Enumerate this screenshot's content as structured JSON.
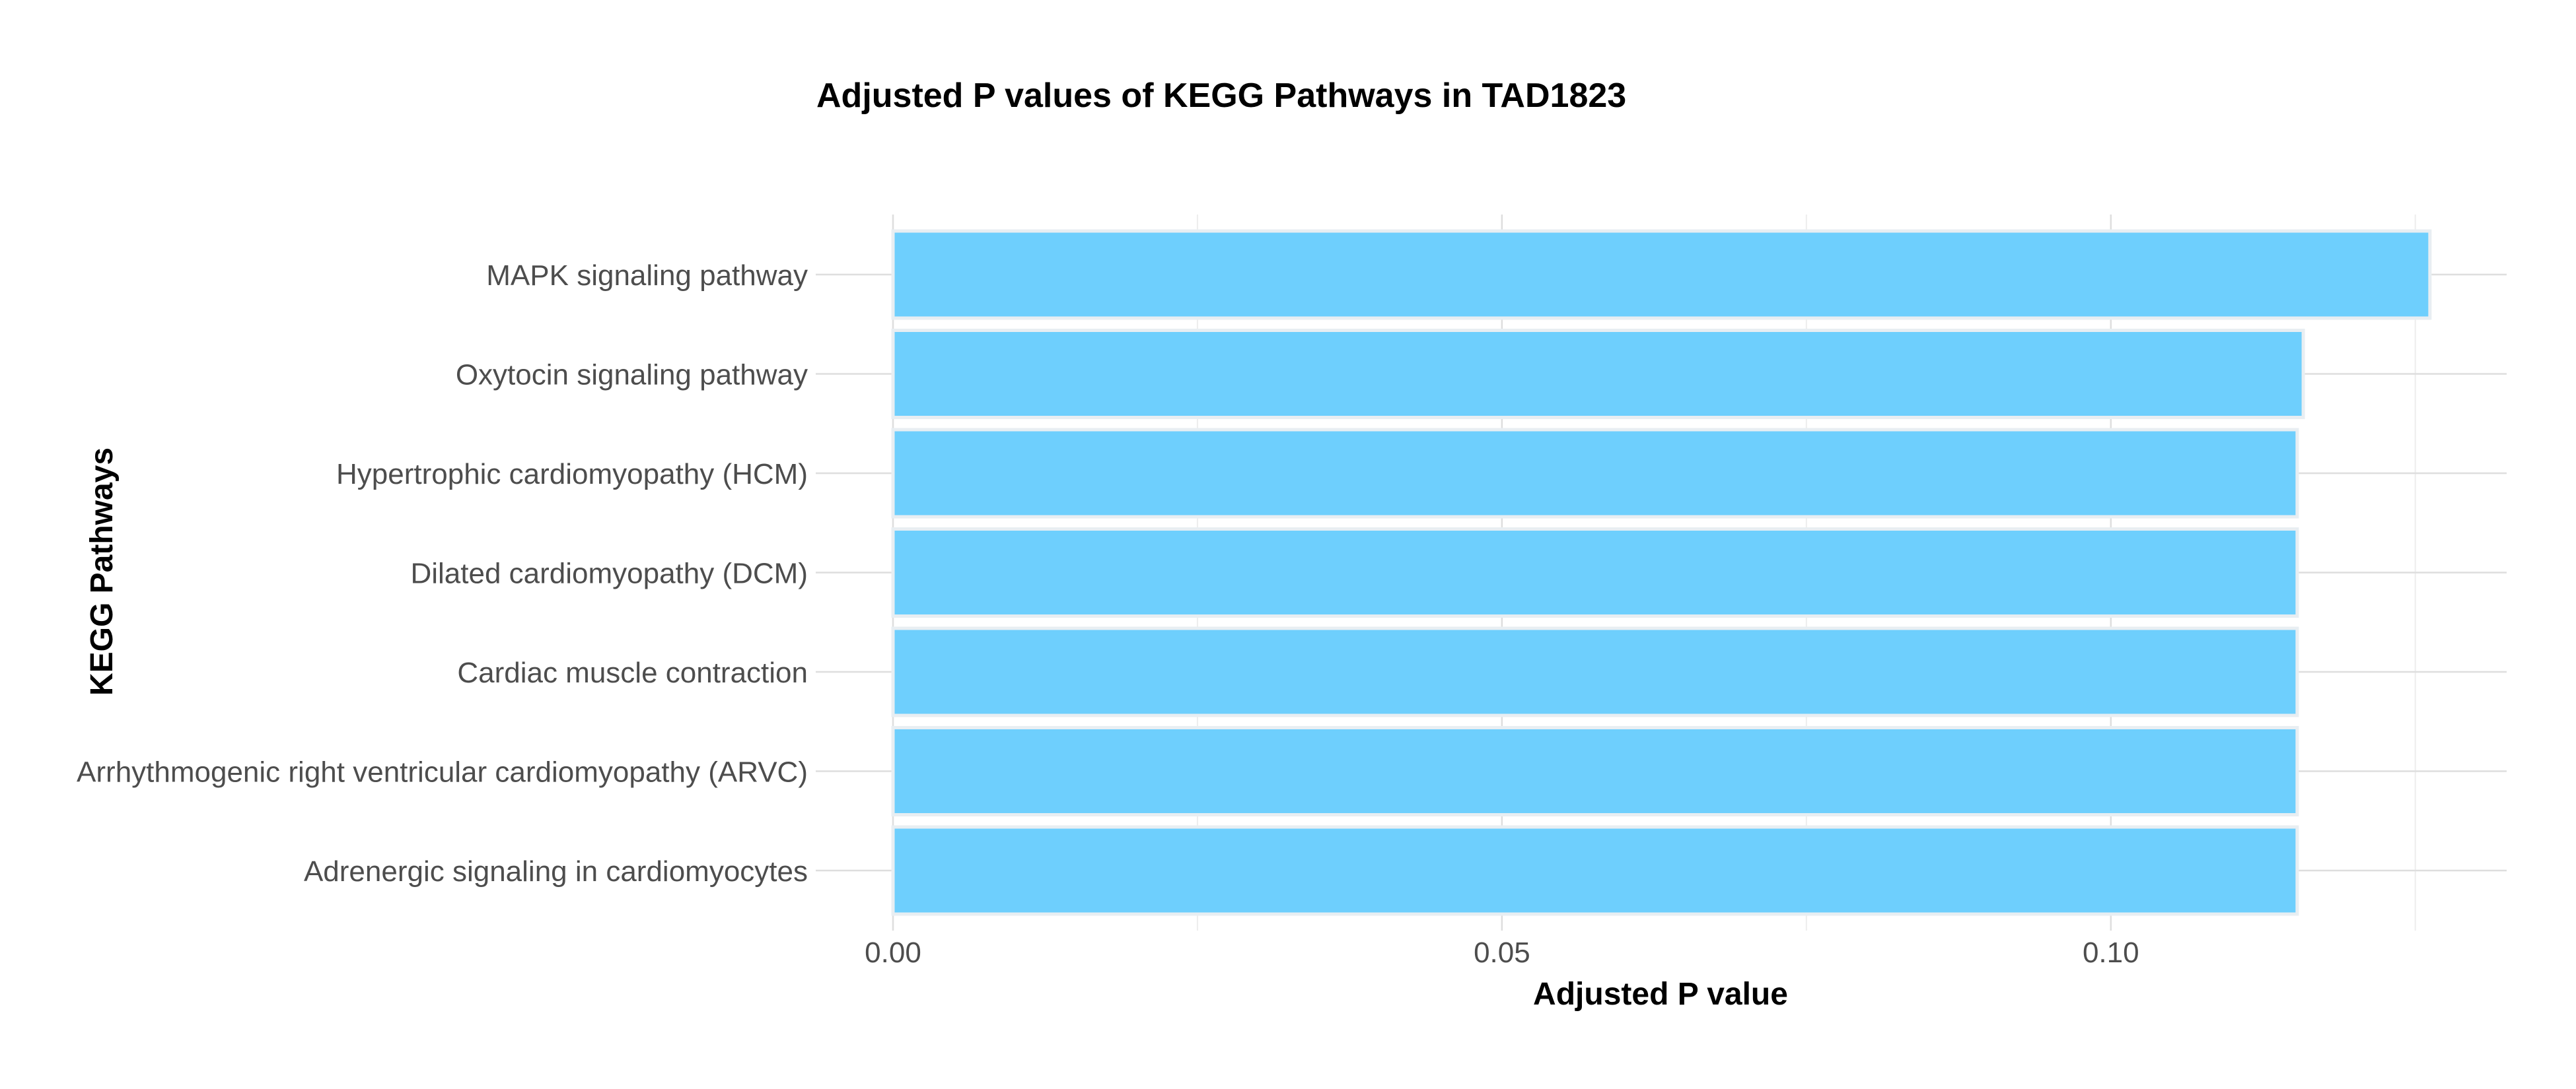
{
  "chart_data": {
    "type": "bar",
    "orientation": "horizontal",
    "title": "Adjusted P values of KEGG Pathways in TAD1823",
    "xlabel": "Adjusted P value",
    "ylabel": "KEGG Pathways",
    "categories": [
      "MAPK signaling pathway",
      "Oxytocin signaling pathway",
      "Hypertrophic cardiomyopathy (HCM)",
      "Dilated cardiomyopathy (DCM)",
      "Cardiac muscle contraction",
      "Arrhythmogenic right ventricular cardiomyopathy (ARVC)",
      "Adrenergic signaling in cardiomyocytes"
    ],
    "values": [
      0.1262,
      0.1158,
      0.1153,
      0.1153,
      0.1153,
      0.1153,
      0.1153
    ],
    "xlim": [
      0.0,
      0.1325
    ],
    "xticks": [
      0.0,
      0.05,
      0.1
    ],
    "xtick_labels": [
      "0.00",
      "0.05",
      "0.10"
    ],
    "grid": true,
    "legend": "none",
    "colors": {
      "bar_fill": "#6ECFFD",
      "bar_outline": "#E8EEF2",
      "grid_major": "#DEDEDE",
      "grid_minor": "#EDEDED",
      "tick_label": "#4D4D4D",
      "title": "#000000"
    }
  }
}
